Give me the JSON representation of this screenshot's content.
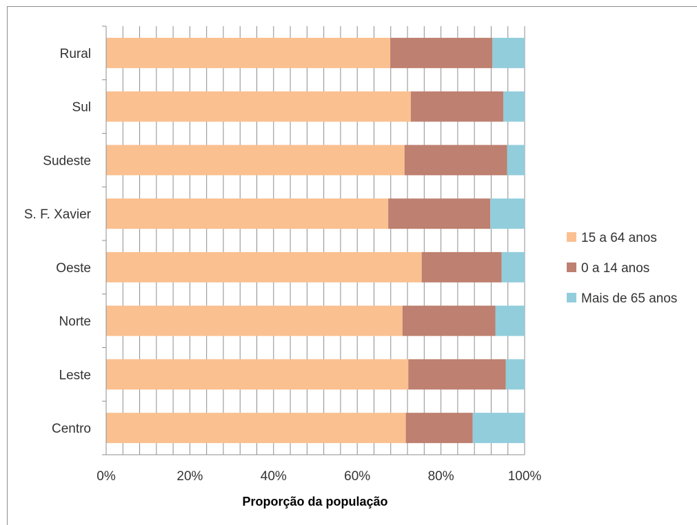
{
  "chart_data": {
    "type": "bar",
    "orientation": "horizontal",
    "stacked": "percent",
    "categories": [
      "Centro",
      "Leste",
      "Norte",
      "Oeste",
      "S. F. Xavier",
      "Sudeste",
      "Sul",
      "Rural"
    ],
    "series": [
      {
        "name": "15 a 64 anos",
        "color": "#FAC090",
        "values": [
          71.6,
          72.2,
          70.8,
          75.4,
          67.4,
          71.3,
          72.8,
          67.9
        ]
      },
      {
        "name": "0 a 14 anos",
        "color": "#BE8070",
        "values": [
          16.0,
          23.3,
          22.2,
          19.1,
          24.4,
          24.5,
          22.1,
          24.4
        ]
      },
      {
        "name": "Mais de 65 anos",
        "color": "#92CDDC",
        "values": [
          12.4,
          4.5,
          7.0,
          5.5,
          8.2,
          4.2,
          5.1,
          7.7
        ]
      }
    ],
    "x_ticks": [
      "0%",
      "20%",
      "40%",
      "60%",
      "80%",
      "100%"
    ],
    "xlim": [
      0,
      100
    ],
    "xlabel": "Proporção da população",
    "ylabel": "",
    "grid": true,
    "legend_position": "right"
  }
}
